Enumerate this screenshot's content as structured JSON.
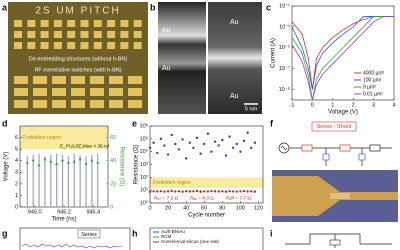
{
  "panels": {
    "a": {
      "label": "a",
      "title": "2S UM PITCH",
      "texts": [
        "De-embedding structures (without h-BN)",
        "RF memristive switches (with h-BN)"
      ]
    },
    "b": {
      "label": "b",
      "texts": [
        "Au",
        "Au",
        "Au",
        "Au"
      ],
      "scale": "5 nm"
    },
    "c": {
      "label": "c"
    },
    "d": {
      "label": "d"
    },
    "e": {
      "label": "e"
    },
    "f": {
      "label": "f",
      "title": "Series - Shunt"
    },
    "g": {
      "label": "g",
      "texts": [
        "Series"
      ]
    },
    "h": {
      "label": "h",
      "legend": [
        "Au/h-BN/Au",
        "RCM",
        "Commercial silicon (one site)"
      ]
    },
    "i": {
      "label": "i"
    }
  },
  "chart_data": [
    {
      "type": "line",
      "xlabel": "Voltage (V)",
      "ylabel": "Current (A)",
      "log_y": true,
      "x": [
        -1,
        -0.5,
        -0.2,
        0,
        0.2,
        0.5,
        1,
        1.5,
        2,
        2.5,
        3,
        3.5,
        4
      ],
      "xlim": [
        -1,
        4
      ],
      "xticks": [
        -1,
        0,
        1,
        2,
        3,
        4
      ],
      "ylim": [
        1e-10,
        0.1
      ],
      "yticks": [
        {
          "value": 0.1,
          "label": "10⁻¹"
        },
        {
          "value": 0.001,
          "label": "10⁻³"
        },
        {
          "value": 1e-05,
          "label": "10⁻⁵"
        },
        {
          "value": 1e-07,
          "label": "10⁻⁷"
        },
        {
          "value": 1e-09,
          "label": "10⁻⁹"
        }
      ],
      "legend": "lower right",
      "series": [
        {
          "name": "4000 µm²",
          "color": "#e0302a",
          "values": [
            0.003,
            0.0002,
            1e-06,
            1e-09,
            1e-06,
            1e-05,
            0.0001,
            0.0005,
            0.002,
            0.005,
            0.01,
            0.01,
            0.01
          ]
        },
        {
          "name": "100 µm²",
          "color": "#2a5ad8",
          "values": [
            0.001,
            1e-05,
            1e-07,
            1e-09,
            2e-07,
            3e-06,
            3e-05,
            0.0002,
            0.001,
            0.01,
            0.01,
            0.01,
            0.01
          ]
        },
        {
          "name": "9 µm²",
          "color": "#2fa83a",
          "values": [
            0.0001,
            3e-06,
            2e-08,
            1e-10,
            1e-08,
            1e-07,
            1e-06,
            1e-05,
            0.0001,
            0.001,
            0.01,
            0.01,
            0.01
          ]
        },
        {
          "name": "0.01 µm²",
          "color": "#a03ac8",
          "values": [
            2e-05,
            5e-07,
            5e-09,
            1e-10,
            3e-09,
            3e-08,
            3e-07,
            3e-06,
            3e-05,
            0.0003,
            0.003,
            0.01,
            0.01
          ]
        }
      ]
    },
    {
      "type": "bar",
      "xlabel": "Time (ns)",
      "ylabel": "Voltage (V)",
      "y2label": "Resistance (Ω)",
      "x": [
        944.95,
        944.99,
        945.03,
        945.07,
        945.11,
        945.15,
        945.19,
        945.23,
        945.27,
        945.31,
        945.35,
        945.39,
        945.43
      ],
      "xlim": [
        944.9,
        945.5
      ],
      "xticks": [
        {
          "value": 945.0,
          "label": "945.0"
        },
        945.2,
        945.4
      ],
      "ylim": [
        0,
        7
      ],
      "yticks": [
        0,
        1,
        2,
        3,
        4,
        5,
        6
      ],
      "y2lim": [
        0,
        70
      ],
      "y2ticks": [
        0,
        20,
        40,
        60
      ],
      "bands": [
        {
          "label": "Forbidden region",
          "from": 5,
          "to": 7,
          "color": "#f6e68a"
        }
      ],
      "annotations": [
        "E_PULSE,Max < 36 nJ"
      ],
      "series": [
        {
          "name": "Voltage",
          "mark": "bar",
          "color": "#9aa4b0",
          "values": [
            4.4,
            4.5,
            4.6,
            4.4,
            4.5,
            4.6,
            4.5,
            4.4,
            4.6,
            4.5,
            4.4,
            4.5,
            4.6
          ]
        },
        {
          "name": "Resistance",
          "mark": "dot",
          "axis": "y2",
          "color": "#3aa53a",
          "values": [
            38,
            40,
            36,
            41,
            39,
            37,
            40,
            38,
            39,
            41,
            37,
            40,
            38
          ]
        }
      ]
    },
    {
      "type": "scatter",
      "xlabel": "Cycle number",
      "ylabel": "Resistance (Ω)",
      "log_y": true,
      "x": [
        0,
        4,
        8,
        12,
        16,
        20,
        24,
        28,
        32,
        36,
        40,
        44,
        48,
        52,
        56,
        60,
        64,
        68,
        72,
        76,
        80,
        84,
        88,
        92,
        96,
        100,
        104,
        108,
        112,
        116
      ],
      "xlim": [
        0,
        125
      ],
      "xticks": [
        0,
        20,
        40,
        60,
        80,
        100,
        120
      ],
      "ylim": [
        1,
        1000000
      ],
      "yticks": [
        {
          "value": 1,
          "label": "10⁰"
        },
        {
          "value": 10,
          "label": "10¹"
        },
        {
          "value": 100,
          "label": "10²"
        },
        {
          "value": 1000,
          "label": "10³"
        },
        {
          "value": 10000,
          "label": "10⁴"
        },
        {
          "value": 100000,
          "label": "10⁵"
        },
        {
          "value": 1000000,
          "label": "10⁶"
        }
      ],
      "bands": [
        {
          "label": "Forbidden region",
          "from": 15,
          "to": 100,
          "color": "#f6e68a"
        }
      ],
      "annotations": [
        "Rₒₙ = 7.2 Ω",
        "Rₐᵥ = 8.3 Ω",
        "Rₒff = 7.7 Ω"
      ],
      "series": [
        {
          "name": "OFF",
          "mark": "dot",
          "color": "#2b3fbf",
          "values": [
            20000,
            50000,
            8000,
            100000,
            30000,
            6000,
            200000,
            40000,
            15000,
            90000,
            3000,
            50000,
            20000,
            120000,
            7000,
            40000,
            250000,
            10000,
            60000,
            30000,
            80000,
            5000,
            150000,
            20000,
            40000,
            10000,
            70000,
            300000,
            20000,
            50000
          ]
        },
        {
          "name": "ON",
          "mark": "dot",
          "color": "#d62020",
          "values": [
            7.5,
            8.1,
            7.9,
            8.4,
            7.7,
            8.0,
            8.6,
            7.8,
            8.2,
            7.6,
            8.3,
            7.9,
            8.1,
            8.5,
            7.7,
            8.0,
            7.8,
            8.4,
            8.1,
            7.9,
            8.2,
            7.6,
            8.3,
            8.0,
            7.8,
            8.1,
            8.5,
            7.9,
            8.2,
            7.7
          ]
        }
      ]
    }
  ]
}
